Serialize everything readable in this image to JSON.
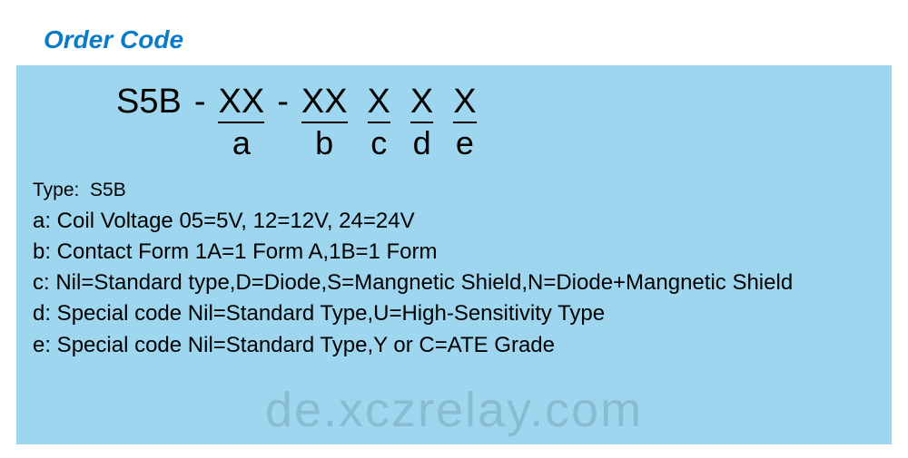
{
  "title": "Order Code",
  "colors": {
    "title": "#0a7cc7",
    "panel_bg": "#9dd6ee",
    "text": "#000000",
    "page_bg": "#ffffff",
    "watermark": "rgba(0,0,0,0.12)"
  },
  "typography": {
    "title_fontsize": 28,
    "title_weight": "bold",
    "title_style": "italic",
    "code_fontsize": 38,
    "sub_fontsize": 36,
    "legend_fontsize": 24,
    "type_fontsize": 21,
    "watermark_fontsize": 54,
    "font_family": "Arial"
  },
  "code": {
    "prefix": "S5B",
    "dash1": "-",
    "dash2": "-",
    "segments": [
      {
        "text": "XX",
        "sub": "a"
      },
      {
        "text": "XX",
        "sub": "b"
      },
      {
        "text": "X",
        "sub": "c"
      },
      {
        "text": "X",
        "sub": "d"
      },
      {
        "text": "X",
        "sub": "e"
      }
    ],
    "underline_thickness": 2.5
  },
  "legend": {
    "type_label": "Type:",
    "type_value": "S5B",
    "lines": [
      "a: Coil Voltage 05=5V, 12=12V, 24=24V",
      "b: Contact Form 1A=1 Form A,1B=1 Form",
      "c: Nil=Standard type,D=Diode,S=Mangnetic Shield,N=Diode+Mangnetic Shield",
      "d: Special code Nil=Standard Type,U=High-Sensitivity Type",
      "e: Special code Nil=Standard Type,Y or C=ATE Grade"
    ]
  },
  "watermark": "de.xczrelay.com"
}
